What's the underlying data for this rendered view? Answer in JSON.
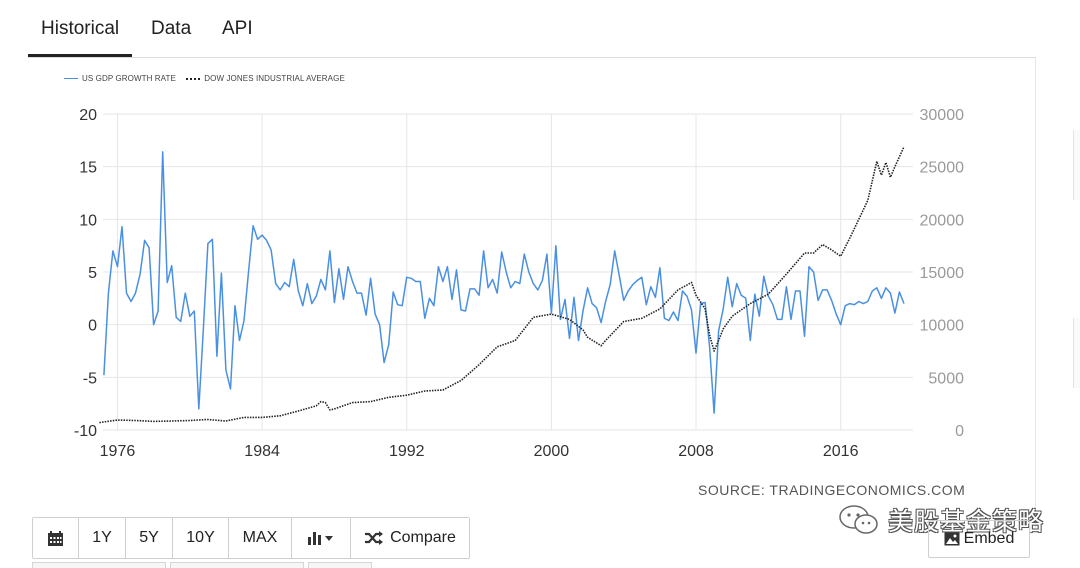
{
  "tabs": [
    {
      "label": "Historical",
      "active": true
    },
    {
      "label": "Data",
      "active": false
    },
    {
      "label": "API",
      "active": false
    }
  ],
  "legend": {
    "gdp": "US GDP GROWTH RATE",
    "dow": "DOW JONES INDUSTRIAL AVERAGE"
  },
  "source": "SOURCE: TRADINGECONOMICS.COM",
  "toolbar": {
    "calendar_icon": "calendar-icon",
    "btn_1y": "1Y",
    "btn_5y": "5Y",
    "btn_10y": "10Y",
    "btn_max": "MAX",
    "chart_type_icon": "bar-chart-icon",
    "compare": "Compare",
    "compare_icon": "shuffle-icon"
  },
  "embed": {
    "label": "Embed",
    "icon": "image-icon"
  },
  "watermark": {
    "text": "美股基金策略",
    "icon": "wechat-icon"
  },
  "colors": {
    "gdp": "#4a90e2",
    "dow": "#222222",
    "grid": "#e6e6e6",
    "axis_text": "#333333",
    "right_axis_text": "#9a9a9a"
  },
  "chart_data": {
    "type": "line",
    "title": "",
    "x_ticks": [
      "1976",
      "1984",
      "1992",
      "2000",
      "2008",
      "2016"
    ],
    "xlim": [
      1975.2,
      2020.0
    ],
    "grid": true,
    "legend_position": "top-left",
    "left_axis": {
      "ticks": [
        "20",
        "15",
        "10",
        "5",
        "0",
        "-5",
        "-10"
      ],
      "ylim": [
        -10,
        20
      ]
    },
    "right_axis": {
      "ticks": [
        "30000",
        "25000",
        "20000",
        "15000",
        "10000",
        "5000",
        "0"
      ],
      "ylim": [
        0,
        30000
      ]
    },
    "series": [
      {
        "name": "US GDP GROWTH RATE",
        "axis": "left",
        "style": "solid",
        "x": [
          1975.25,
          1975.5,
          1975.75,
          1976.0,
          1976.25,
          1976.5,
          1976.75,
          1977.0,
          1977.25,
          1977.5,
          1977.75,
          1978.0,
          1978.25,
          1978.5,
          1978.75,
          1979.0,
          1979.25,
          1979.5,
          1979.75,
          1980.0,
          1980.25,
          1980.5,
          1980.75,
          1981.0,
          1981.25,
          1981.5,
          1981.75,
          1982.0,
          1982.25,
          1982.5,
          1982.75,
          1983.0,
          1983.25,
          1983.5,
          1983.75,
          1984.0,
          1984.25,
          1984.5,
          1984.75,
          1985.0,
          1985.25,
          1985.5,
          1985.75,
          1986.0,
          1986.25,
          1986.5,
          1986.75,
          1987.0,
          1987.25,
          1987.5,
          1987.75,
          1988.0,
          1988.25,
          1988.5,
          1988.75,
          1989.0,
          1989.25,
          1989.5,
          1989.75,
          1990.0,
          1990.25,
          1990.5,
          1990.75,
          1991.0,
          1991.25,
          1991.5,
          1991.75,
          1992.0,
          1992.25,
          1992.5,
          1992.75,
          1993.0,
          1993.25,
          1993.5,
          1993.75,
          1994.0,
          1994.25,
          1994.5,
          1994.75,
          1995.0,
          1995.25,
          1995.5,
          1995.75,
          1996.0,
          1996.25,
          1996.5,
          1996.75,
          1997.0,
          1997.25,
          1997.5,
          1997.75,
          1998.0,
          1998.25,
          1998.5,
          1998.75,
          1999.0,
          1999.25,
          1999.5,
          1999.75,
          2000.0,
          2000.25,
          2000.5,
          2000.75,
          2001.0,
          2001.25,
          2001.5,
          2001.75,
          2002.0,
          2002.25,
          2002.5,
          2002.75,
          2003.0,
          2003.25,
          2003.5,
          2003.75,
          2004.0,
          2004.25,
          2004.5,
          2004.75,
          2005.0,
          2005.25,
          2005.5,
          2005.75,
          2006.0,
          2006.25,
          2006.5,
          2006.75,
          2007.0,
          2007.25,
          2007.5,
          2007.75,
          2008.0,
          2008.25,
          2008.5,
          2008.75,
          2009.0,
          2009.25,
          2009.5,
          2009.75,
          2010.0,
          2010.25,
          2010.5,
          2010.75,
          2011.0,
          2011.25,
          2011.5,
          2011.75,
          2012.0,
          2012.25,
          2012.5,
          2012.75,
          2013.0,
          2013.25,
          2013.5,
          2013.75,
          2014.0,
          2014.25,
          2014.5,
          2014.75,
          2015.0,
          2015.25,
          2015.5,
          2015.75,
          2016.0,
          2016.25,
          2016.5,
          2016.75,
          2017.0,
          2017.25,
          2017.5,
          2017.75,
          2018.0,
          2018.25,
          2018.5,
          2018.75,
          2019.0,
          2019.25,
          2019.5
        ],
        "values": [
          -4.8,
          3.0,
          7.0,
          5.5,
          9.3,
          3.0,
          2.2,
          3.0,
          4.8,
          8.0,
          7.3,
          0.0,
          1.3,
          16.4,
          4.0,
          5.6,
          0.7,
          0.3,
          3.0,
          0.8,
          1.3,
          -8.0,
          -0.5,
          7.7,
          8.1,
          -3.0,
          4.9,
          -4.3,
          -6.1,
          1.8,
          -1.5,
          0.4,
          5.0,
          9.4,
          8.1,
          8.5,
          8.0,
          7.1,
          3.9,
          3.3,
          4.0,
          3.6,
          6.2,
          3.2,
          1.8,
          3.9,
          2.0,
          2.7,
          4.3,
          3.3,
          7.0,
          2.1,
          5.3,
          2.4,
          5.5,
          4.1,
          3.0,
          3.0,
          0.9,
          4.4,
          1.0,
          0.0,
          -3.6,
          -1.9,
          3.1,
          1.9,
          1.8,
          4.5,
          4.4,
          4.1,
          4.1,
          0.6,
          2.5,
          1.8,
          5.5,
          4.1,
          5.5,
          2.4,
          5.2,
          1.4,
          1.3,
          3.4,
          3.4,
          2.8,
          7.0,
          3.5,
          4.3,
          3.0,
          6.9,
          5.0,
          3.5,
          4.1,
          3.9,
          6.7,
          5.0,
          3.9,
          3.3,
          4.2,
          6.7,
          1.1,
          7.5,
          0.5,
          2.4,
          -1.3,
          2.6,
          -1.5,
          1.3,
          3.5,
          2.0,
          1.6,
          0.2,
          2.2,
          3.8,
          7.0,
          4.7,
          2.3,
          3.2,
          3.8,
          4.2,
          4.5,
          1.9,
          3.6,
          2.6,
          5.4,
          0.6,
          0.4,
          1.2,
          0.4,
          3.2,
          2.7,
          1.4,
          -2.7,
          2.0,
          2.1,
          -2.1,
          -8.4,
          -0.6,
          1.5,
          4.5,
          1.7,
          3.9,
          2.8,
          2.5,
          -1.5,
          2.9,
          0.8,
          4.6,
          2.7,
          1.9,
          0.5,
          0.5,
          3.6,
          0.5,
          3.2,
          3.2,
          -1.1,
          5.5,
          5.0,
          2.3,
          3.3,
          3.3,
          2.3,
          1.0,
          0.0,
          1.8,
          2.0,
          1.9,
          2.2,
          2.0,
          2.2,
          3.2,
          3.5,
          2.5,
          3.5,
          3.0,
          1.1,
          3.1,
          2.0
        ]
      },
      {
        "name": "DOW JONES INDUSTRIAL AVERAGE",
        "axis": "right",
        "style": "dotted",
        "x": [
          1975.0,
          1976.0,
          1977.0,
          1978.0,
          1979.0,
          1980.0,
          1981.0,
          1982.0,
          1983.0,
          1984.0,
          1985.0,
          1986.0,
          1987.0,
          1987.25,
          1987.5,
          1987.75,
          1988.0,
          1989.0,
          1990.0,
          1991.0,
          1992.0,
          1993.0,
          1994.0,
          1995.0,
          1996.0,
          1997.0,
          1998.0,
          1999.0,
          2000.0,
          2001.0,
          2001.75,
          2002.0,
          2002.75,
          2003.0,
          2004.0,
          2005.0,
          2006.0,
          2007.0,
          2007.75,
          2008.0,
          2008.5,
          2008.75,
          2009.0,
          2009.25,
          2009.5,
          2010.0,
          2011.0,
          2012.0,
          2013.0,
          2014.0,
          2014.5,
          2015.0,
          2015.5,
          2016.0,
          2016.5,
          2017.0,
          2017.5,
          2018.0,
          2018.25,
          2018.5,
          2018.75,
          2019.0,
          2019.5
        ],
        "values": [
          700,
          950,
          900,
          820,
          850,
          900,
          1000,
          850,
          1200,
          1200,
          1350,
          1800,
          2300,
          2700,
          2600,
          1900,
          2000,
          2600,
          2700,
          3100,
          3300,
          3700,
          3800,
          4700,
          6200,
          7900,
          8500,
          10700,
          11000,
          10500,
          9500,
          8800,
          8000,
          8500,
          10300,
          10600,
          11500,
          13300,
          14000,
          12800,
          11500,
          9000,
          7500,
          8500,
          9600,
          10800,
          12000,
          12900,
          14800,
          16800,
          16800,
          17600,
          17100,
          16500,
          18200,
          20000,
          21800,
          25500,
          24200,
          25400,
          24000,
          25000,
          26900
        ]
      }
    ]
  }
}
